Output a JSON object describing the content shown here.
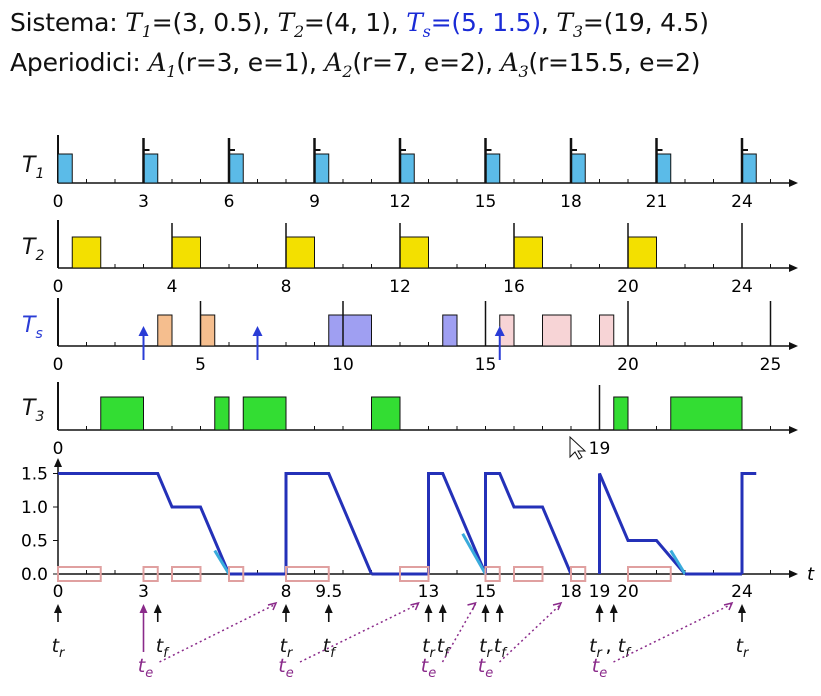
{
  "header": {
    "l1_prefix": "Sistema: ",
    "l1_tasks": [
      {
        "name": "T",
        "sub": "1",
        "value": "=(3, 0.5), ",
        "server": false
      },
      {
        "name": "T",
        "sub": "2",
        "value": "=(4, 1), ",
        "server": false
      },
      {
        "name": "T",
        "sub": "s",
        "value": "=(5, 1.5)",
        "server": true
      },
      {
        "name": "",
        "sub": "",
        "value": ", ",
        "server": false
      },
      {
        "name": "T",
        "sub": "3",
        "value": "=(19, 4.5)",
        "server": false
      }
    ],
    "l2_prefix": "Aperiodici: ",
    "l2_jobs": [
      {
        "name": "A",
        "sub": "1",
        "value": "(r=3, e=1),  "
      },
      {
        "name": "A",
        "sub": "2",
        "value": "(r=7, e=2),  "
      },
      {
        "name": "A",
        "sub": "3",
        "value": "(r=15.5, e=2)"
      }
    ]
  },
  "colors": {
    "t1": "#5bbbe8",
    "t2": "#f3e000",
    "ts_periodic": "#f5be8e",
    "ts_aperiodic": "#9f9ff2",
    "ts_pink": "#f7d4d6",
    "t3": "#33dd33",
    "budget_dark": "#2431b8",
    "budget_light": "#39abdc",
    "idle_box": "#e0a0a0",
    "te": "#8a2a8a",
    "server_label": "#2a3cd6"
  },
  "rows": [
    {
      "id": "t1",
      "label": "T",
      "sub": "1",
      "server": false,
      "axis_ticks": [
        "0",
        "3",
        "6",
        "9",
        "12",
        "15",
        "18",
        "21",
        "24"
      ],
      "jobs": [
        [
          0,
          0.5
        ],
        [
          3,
          3.5
        ],
        [
          6,
          6.5
        ],
        [
          9,
          9.5
        ],
        [
          12,
          12.5
        ],
        [
          15,
          15.5
        ],
        [
          18,
          18.5
        ],
        [
          21,
          21.5
        ],
        [
          24,
          24.5
        ]
      ]
    },
    {
      "id": "t2",
      "label": "T",
      "sub": "2",
      "server": false,
      "axis_ticks": [
        "0",
        "4",
        "8",
        "12",
        "16",
        "20",
        "24"
      ],
      "jobs": [
        [
          0.5,
          1.5
        ],
        [
          4,
          5
        ],
        [
          8,
          9
        ],
        [
          12,
          13
        ],
        [
          16,
          17
        ],
        [
          20,
          21
        ]
      ]
    },
    {
      "id": "ts",
      "label": "T",
      "sub": "s",
      "server": true,
      "axis_ticks": [
        "0",
        "5",
        "10",
        "15",
        "20",
        "25"
      ],
      "jobs": [
        [
          3.5,
          4
        ],
        [
          5,
          5.5
        ],
        [
          9.5,
          11
        ],
        [
          13.5,
          14
        ],
        [
          15.5,
          16
        ],
        [
          17,
          18
        ],
        [
          19,
          19.5
        ]
      ]
    },
    {
      "id": "t3",
      "label": "T",
      "sub": "3",
      "server": false,
      "axis_ticks": [
        "0",
        "19"
      ],
      "jobs": [
        [
          1.5,
          3
        ],
        [
          5.5,
          6
        ],
        [
          6.5,
          8
        ],
        [
          11,
          12
        ],
        [
          19.5,
          20
        ],
        [
          21.5,
          24
        ]
      ]
    }
  ],
  "budget": {
    "y_ticks": [
      "1.5",
      "1.0",
      "0.5",
      "0.0"
    ],
    "t_axis_label": "t",
    "x_labels": [
      "0",
      "3",
      "8",
      "9.5",
      "13",
      "15",
      "18",
      "19",
      "20",
      "24"
    ],
    "segments": [
      [
        0,
        1.5
      ],
      [
        3.5,
        1.5
      ],
      [
        4,
        1.0
      ],
      [
        5,
        1.0
      ],
      [
        6,
        0
      ]
    ],
    "budget_pieces": [
      [
        [
          8,
          0
        ],
        [
          8,
          1.5
        ],
        [
          9.5,
          1.5
        ],
        [
          11,
          0
        ]
      ],
      [
        [
          13,
          0
        ],
        [
          13,
          1.5
        ],
        [
          13.5,
          1.5
        ],
        [
          15,
          0
        ]
      ],
      [
        [
          15,
          0
        ],
        [
          15,
          1.5
        ],
        [
          15.5,
          1.5
        ],
        [
          16,
          1.0
        ],
        [
          17,
          1.0
        ],
        [
          18,
          0
        ]
      ],
      [
        [
          19,
          0
        ],
        [
          19,
          1.5
        ],
        [
          20,
          0.5
        ],
        [
          21,
          0.5
        ],
        [
          22,
          0
        ]
      ],
      [
        [
          24,
          0
        ],
        [
          24,
          1.5
        ],
        [
          24.5,
          1.5
        ]
      ]
    ],
    "marker_tr": "t",
    "marker_tr_sub": "r",
    "marker_tf": "t",
    "marker_tf_sub": "f",
    "marker_te": "t",
    "marker_te_sub": "e",
    "tr_tf_19": "t",
    "comma": ","
  }
}
